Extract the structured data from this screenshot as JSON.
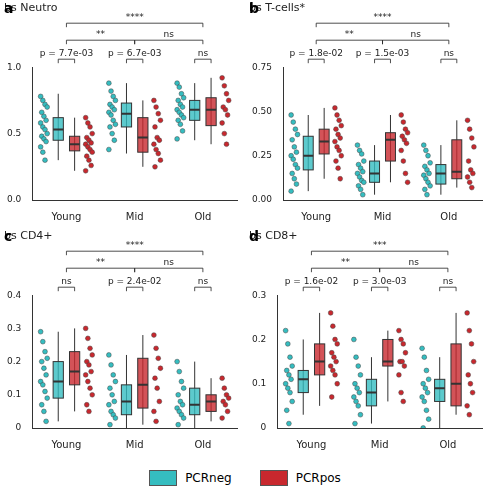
{
  "chart_data": [
    {
      "type": "box",
      "letter": "a",
      "title": "bs Neutro",
      "legend": "bottom",
      "categories": [
        "Young",
        "Mid",
        "Old"
      ],
      "ylim": [
        0,
        1
      ],
      "yticks": [
        {
          "value": 0,
          "label": "0.0"
        },
        {
          "value": 0.5,
          "label": "0.5"
        },
        {
          "value": 1,
          "label": "1.0"
        }
      ],
      "series": [
        {
          "name": "PCRneg",
          "color": "#35BDC0",
          "values": [
            [
              0.78,
              0.75,
              0.72,
              0.7,
              0.66,
              0.63,
              0.6,
              0.58,
              0.55,
              0.53,
              0.5,
              0.48,
              0.46,
              0.44,
              0.4,
              0.36,
              0.3
            ],
            [
              0.88,
              0.82,
              0.78,
              0.75,
              0.72,
              0.7,
              0.68,
              0.66,
              0.64,
              0.6,
              0.57,
              0.55,
              0.5,
              0.45,
              0.38
            ],
            [
              0.88,
              0.85,
              0.8,
              0.77,
              0.75,
              0.72,
              0.7,
              0.68,
              0.66,
              0.64,
              0.62,
              0.6,
              0.57,
              0.52,
              0.46
            ]
          ],
          "box": [
            [
              0.3,
              0.45,
              0.53,
              0.62,
              0.8
            ],
            [
              0.35,
              0.55,
              0.65,
              0.73,
              0.88
            ],
            [
              0.45,
              0.6,
              0.68,
              0.75,
              0.88
            ]
          ]
        },
        {
          "name": "PCRpos",
          "color": "#C8282E",
          "values": [
            [
              0.62,
              0.58,
              0.55,
              0.5,
              0.47,
              0.45,
              0.43,
              0.42,
              0.4,
              0.38,
              0.36,
              0.33,
              0.3,
              0.26,
              0.22
            ],
            [
              0.75,
              0.7,
              0.65,
              0.6,
              0.55,
              0.47,
              0.45,
              0.42,
              0.38,
              0.35,
              0.3,
              0.25
            ],
            [
              0.92,
              0.86,
              0.8,
              0.75,
              0.7,
              0.68,
              0.64,
              0.58,
              0.5,
              0.42
            ]
          ],
          "box": [
            [
              0.22,
              0.37,
              0.42,
              0.48,
              0.62
            ],
            [
              0.25,
              0.36,
              0.47,
              0.62,
              0.75
            ],
            [
              0.42,
              0.56,
              0.68,
              0.77,
              0.92
            ]
          ]
        }
      ],
      "comparisons": [
        {
          "category": "Young",
          "label": "p = 7.7e-03"
        },
        {
          "category": "Mid",
          "label": "p = 6.7e-03"
        },
        {
          "category": "Old",
          "label": "ns"
        },
        {
          "from": "Young",
          "to": "Mid",
          "label": "**"
        },
        {
          "from": "Mid",
          "to": "Old",
          "label": "ns"
        },
        {
          "from": "Young",
          "to": "Old",
          "label": "****"
        }
      ]
    },
    {
      "type": "box",
      "letter": "b",
      "title": "bs T-cells*",
      "categories": [
        "Young",
        "Mid",
        "Old"
      ],
      "ylim": [
        0,
        0.75
      ],
      "yticks": [
        {
          "value": 0,
          "label": "0.00"
        },
        {
          "value": 0.25,
          "label": "0.25"
        },
        {
          "value": 0.5,
          "label": "0.50"
        },
        {
          "value": 0.75,
          "label": "0.75"
        }
      ],
      "series": [
        {
          "name": "PCRneg",
          "color": "#35BDC0",
          "values": [
            [
              0.48,
              0.44,
              0.4,
              0.37,
              0.34,
              0.3,
              0.27,
              0.25,
              0.23,
              0.2,
              0.18,
              0.15,
              0.12,
              0.09,
              0.05
            ],
            [
              0.31,
              0.28,
              0.26,
              0.22,
              0.2,
              0.18,
              0.16,
              0.15,
              0.13,
              0.11,
              0.1,
              0.08,
              0.06,
              0.03
            ],
            [
              0.31,
              0.28,
              0.25,
              0.21,
              0.19,
              0.17,
              0.15,
              0.14,
              0.12,
              0.1,
              0.08,
              0.06,
              0.03
            ]
          ],
          "box": [
            [
              0.05,
              0.17,
              0.25,
              0.36,
              0.48
            ],
            [
              0.03,
              0.1,
              0.15,
              0.22,
              0.31
            ],
            [
              0.03,
              0.09,
              0.15,
              0.2,
              0.31
            ]
          ]
        },
        {
          "name": "PCRpos",
          "color": "#C8282E",
          "values": [
            [
              0.52,
              0.48,
              0.45,
              0.42,
              0.4,
              0.37,
              0.35,
              0.33,
              0.3,
              0.28,
              0.25,
              0.22,
              0.18,
              0.12
            ],
            [
              0.48,
              0.44,
              0.4,
              0.38,
              0.36,
              0.34,
              0.32,
              0.28,
              0.22,
              0.15,
              0.1
            ],
            [
              0.45,
              0.4,
              0.35,
              0.3,
              0.22,
              0.17,
              0.15,
              0.13,
              0.1,
              0.07
            ]
          ],
          "box": [
            [
              0.12,
              0.26,
              0.33,
              0.4,
              0.52
            ],
            [
              0.1,
              0.22,
              0.34,
              0.38,
              0.48
            ],
            [
              0.07,
              0.12,
              0.16,
              0.34,
              0.45
            ]
          ]
        }
      ],
      "comparisons": [
        {
          "category": "Young",
          "label": "p = 1.8e-02"
        },
        {
          "category": "Mid",
          "label": "p = 1.5e-03"
        },
        {
          "category": "Old",
          "label": "ns"
        },
        {
          "from": "Young",
          "to": "Mid",
          "label": "**"
        },
        {
          "from": "Mid",
          "to": "Old",
          "label": "ns"
        },
        {
          "from": "Young",
          "to": "Old",
          "label": "****"
        }
      ]
    },
    {
      "type": "box",
      "letter": "c",
      "title": "bs CD4+",
      "categories": [
        "Young",
        "Mid",
        "Old"
      ],
      "ylim": [
        0,
        0.4
      ],
      "yticks": [
        0,
        0.1,
        0.2,
        0.3,
        0.4
      ],
      "series": [
        {
          "name": "PCRneg",
          "color": "#35BDC0",
          "values": [
            [
              0.29,
              0.26,
              0.23,
              0.21,
              0.2,
              0.18,
              0.16,
              0.14,
              0.13,
              0.11,
              0.09,
              0.07,
              0.05,
              0.02
            ],
            [
              0.22,
              0.19,
              0.16,
              0.14,
              0.12,
              0.1,
              0.08,
              0.07,
              0.05,
              0.04,
              0.03,
              0.01
            ],
            [
              0.2,
              0.17,
              0.14,
              0.12,
              0.1,
              0.08,
              0.07,
              0.06,
              0.05,
              0.04,
              0.03,
              0.01
            ]
          ],
          "box": [
            [
              0.02,
              0.09,
              0.14,
              0.2,
              0.29
            ],
            [
              0,
              0.04,
              0.08,
              0.13,
              0.22
            ],
            [
              0,
              0.04,
              0.07,
              0.12,
              0.2
            ]
          ]
        },
        {
          "name": "PCRpos",
          "color": "#C8282E",
          "values": [
            [
              0.3,
              0.27,
              0.24,
              0.22,
              0.2,
              0.19,
              0.17,
              0.16,
              0.14,
              0.12,
              0.1,
              0.07,
              0.05
            ],
            [
              0.28,
              0.24,
              0.21,
              0.18,
              0.15,
              0.12,
              0.08,
              0.05,
              0.02
            ],
            [
              0.15,
              0.12,
              0.1,
              0.09,
              0.08,
              0.07,
              0.05,
              0.03
            ]
          ],
          "box": [
            [
              0.05,
              0.13,
              0.17,
              0.23,
              0.3
            ],
            [
              0.01,
              0.06,
              0.13,
              0.21,
              0.28
            ],
            [
              0.02,
              0.05,
              0.08,
              0.1,
              0.15
            ]
          ]
        }
      ],
      "comparisons": [
        {
          "category": "Young",
          "label": "ns"
        },
        {
          "category": "Mid",
          "label": "p = 2.4e-02"
        },
        {
          "category": "Old",
          "label": "ns"
        },
        {
          "from": "Young",
          "to": "Mid",
          "label": "**"
        },
        {
          "from": "Mid",
          "to": "Old",
          "label": "ns"
        },
        {
          "from": "Young",
          "to": "Old",
          "label": "****"
        }
      ]
    },
    {
      "type": "box",
      "letter": "d",
      "title": "bs CD8+",
      "categories": [
        "Young",
        "Mid",
        "Old"
      ],
      "ylim": [
        0,
        0.3
      ],
      "yticks": [
        0,
        0.1,
        0.2,
        0.3
      ],
      "series": [
        {
          "name": "PCRneg",
          "color": "#35BDC0",
          "values": [
            [
              0.22,
              0.19,
              0.16,
              0.14,
              0.13,
              0.12,
              0.11,
              0.1,
              0.09,
              0.08,
              0.06,
              0.04,
              0.01
            ],
            [
              0.2,
              0.16,
              0.14,
              0.12,
              0.1,
              0.09,
              0.08,
              0.07,
              0.06,
              0.05,
              0.03,
              0.01
            ],
            [
              0.18,
              0.16,
              0.13,
              0.11,
              0.1,
              0.09,
              0.08,
              0.07,
              0.06,
              0.04,
              0.02,
              0
            ]
          ],
          "box": [
            [
              0.03,
              0.08,
              0.11,
              0.13,
              0.2
            ],
            [
              0.01,
              0.05,
              0.08,
              0.11,
              0.16
            ],
            [
              0,
              0.06,
              0.09,
              0.11,
              0.16
            ]
          ]
        },
        {
          "name": "PCRpos",
          "color": "#C8282E",
          "values": [
            [
              0.26,
              0.23,
              0.2,
              0.19,
              0.17,
              0.16,
              0.15,
              0.14,
              0.13,
              0.12,
              0.1,
              0.07
            ],
            [
              0.22,
              0.2,
              0.19,
              0.17,
              0.15,
              0.15,
              0.14,
              0.12,
              0.08,
              0.06
            ],
            [
              0.26,
              0.22,
              0.19,
              0.15,
              0.12,
              0.1,
              0.08,
              0.05,
              0.03
            ]
          ],
          "box": [
            [
              0.05,
              0.12,
              0.15,
              0.19,
              0.26
            ],
            [
              0.06,
              0.14,
              0.15,
              0.2,
              0.22
            ],
            [
              0.03,
              0.05,
              0.1,
              0.19,
              0.26
            ]
          ]
        }
      ],
      "comparisons": [
        {
          "category": "Young",
          "label": "p = 1.6e-02"
        },
        {
          "category": "Mid",
          "label": "p = 3.0e-03"
        },
        {
          "category": "Old",
          "label": "ns"
        },
        {
          "from": "Young",
          "to": "Mid",
          "label": "**"
        },
        {
          "from": "Mid",
          "to": "Old",
          "label": "ns"
        },
        {
          "from": "Young",
          "to": "Old",
          "label": "***"
        }
      ]
    }
  ]
}
